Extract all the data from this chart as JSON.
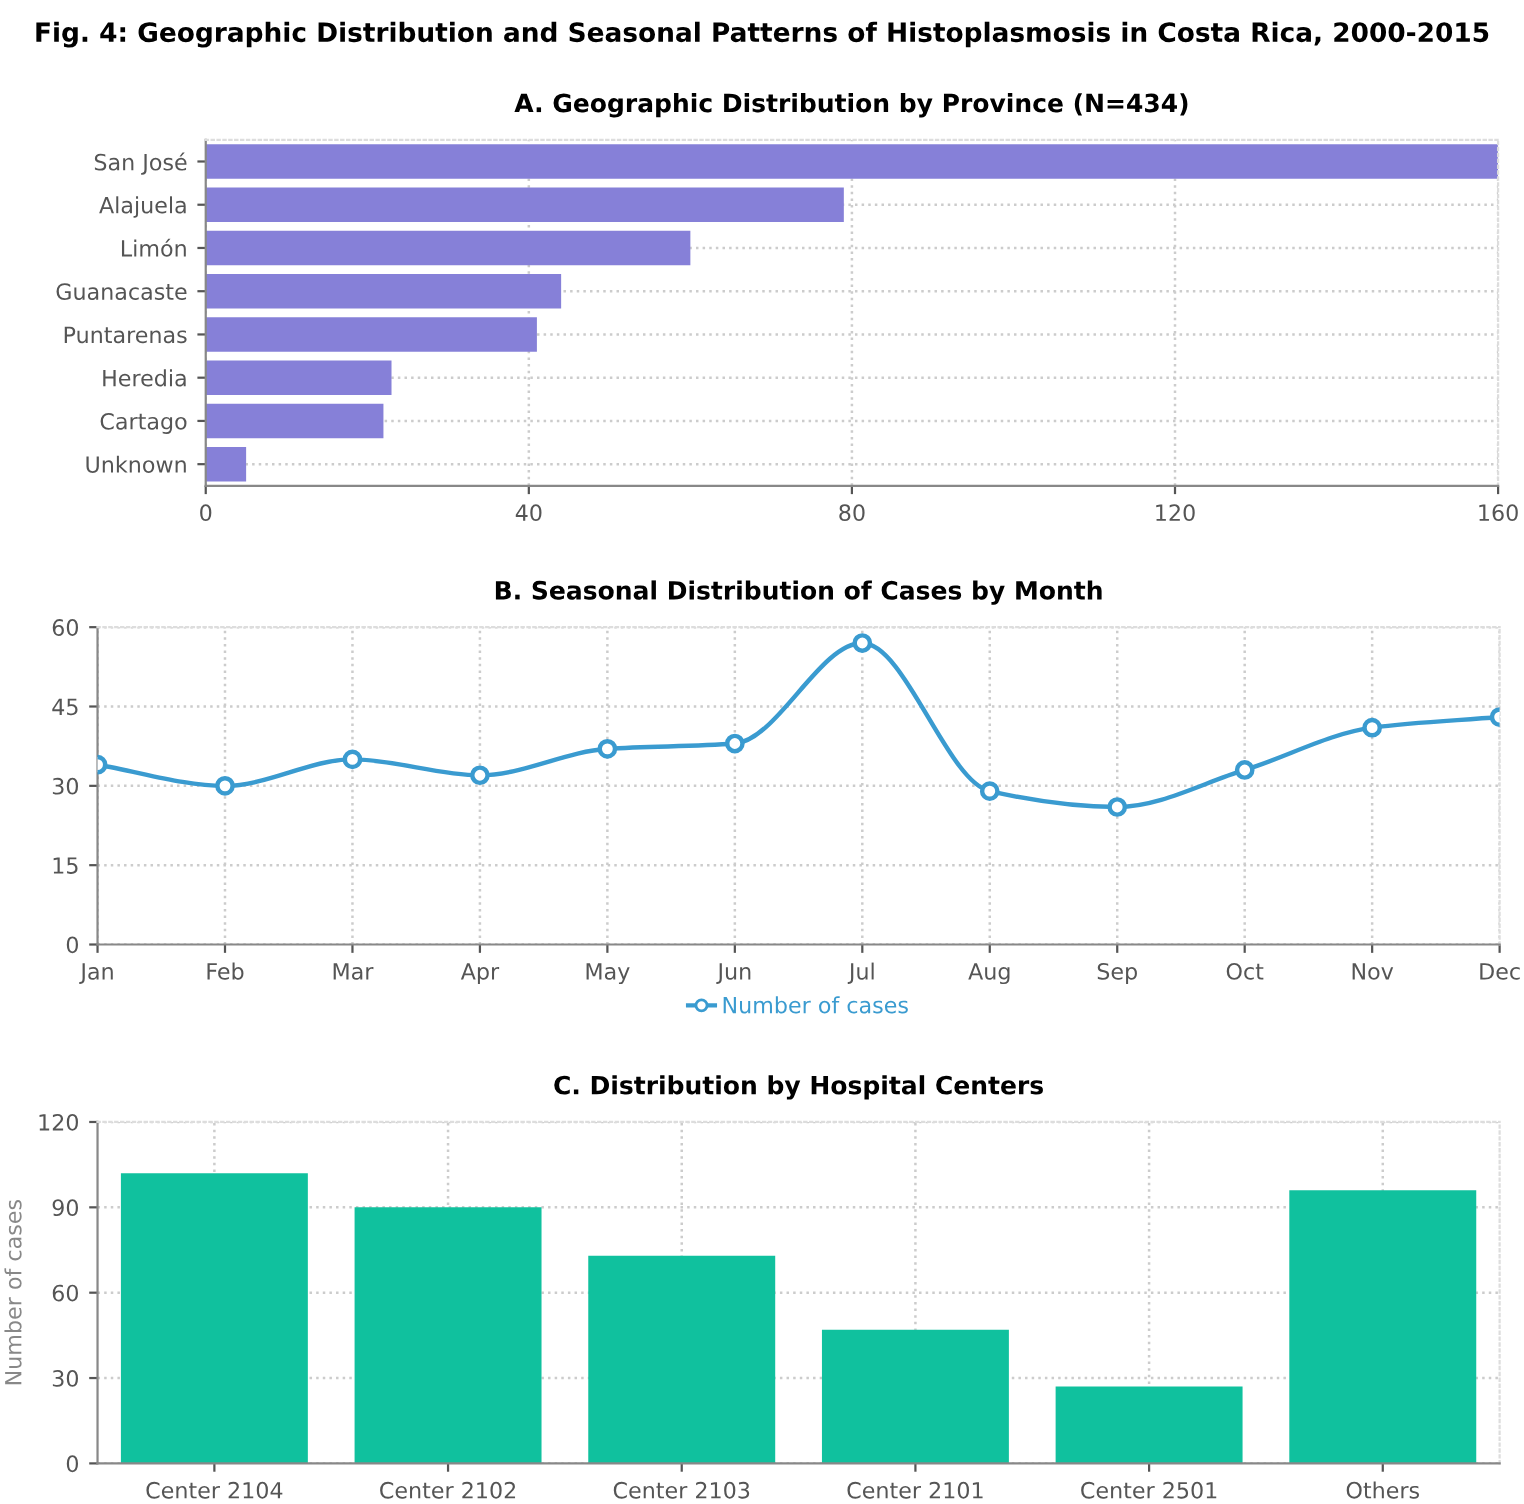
{
  "chart_data": [
    {
      "type": "bar",
      "title": "Fig. 4: Geographic Distribution and Seasonal Patterns of Histoplasmosis in Costa Rica, 2000-2015",
      "subtitle": "A. Geographic Distribution by Province (N=434)",
      "orientation": "horizontal",
      "categories": [
        "San José",
        "Alajuela",
        "Limón",
        "Guanacaste",
        "Puntarenas",
        "Heredia",
        "Cartago",
        "Unknown"
      ],
      "series": [
        {
          "color": "#8680d8",
          "values": [
            160,
            79,
            60,
            44,
            41,
            23,
            22,
            5
          ]
        }
      ],
      "xlim": [
        0,
        160
      ],
      "xticks": [
        0,
        40,
        80,
        120,
        160
      ],
      "grid": true,
      "legend": false
    },
    {
      "type": "line",
      "subtitle": "B. Seasonal Distribution of Cases by Month",
      "categories": [
        "Jan",
        "Feb",
        "Mar",
        "Apr",
        "May",
        "Jun",
        "Jul",
        "Aug",
        "Sep",
        "Oct",
        "Nov",
        "Dec"
      ],
      "series": [
        {
          "name": "Number of cases",
          "color": "#3a9bd0",
          "values": [
            34,
            30,
            35,
            32,
            37,
            38,
            57,
            29,
            26,
            33,
            41,
            43
          ]
        }
      ],
      "ylim": [
        0,
        60
      ],
      "yticks": [
        0,
        15,
        30,
        45,
        60
      ],
      "grid": true,
      "legend": "bottom",
      "marker": "circle",
      "line_style": "solid"
    },
    {
      "type": "bar",
      "subtitle": "C. Distribution by Hospital Centers",
      "ylabel": "Number of cases",
      "categories": [
        "Center 2104",
        "Center 2102",
        "Center 2103",
        "Center 2101",
        "Center 2501",
        "Others"
      ],
      "series": [
        {
          "color": "#10c19e",
          "values": [
            102,
            90,
            73,
            47,
            27,
            96
          ]
        }
      ],
      "ylim": [
        0,
        120
      ],
      "yticks": [
        0,
        30,
        60,
        90,
        120
      ],
      "grid": true,
      "legend": false
    }
  ]
}
